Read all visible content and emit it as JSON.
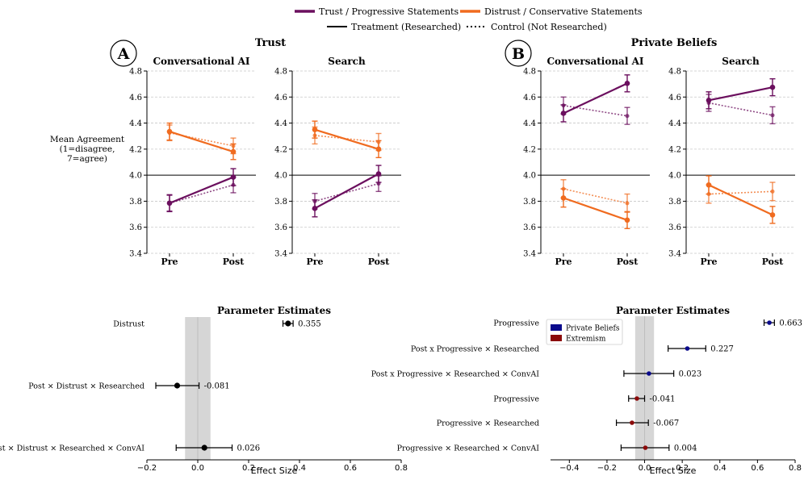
{
  "colors": {
    "purple": "#6b0f5e",
    "orange": "#f06b1f",
    "navy": "#0a0a8c",
    "darkred": "#8b0a0a",
    "black": "#000000",
    "grid": "#c8c8c8",
    "band": "#d6d6d6"
  },
  "legend": {
    "trust_label": "Trust / Progressive Statements",
    "distrust_label": "Distrust / Conservative Statements",
    "treatment_label": "Treatment (Researched)",
    "control_label": "Control (Not Researched)"
  },
  "panels": {
    "a": {
      "letter": "A",
      "title": "Trust"
    },
    "b": {
      "letter": "B",
      "title": "Private Beliefs"
    }
  },
  "ylabel": [
    "Mean Agreement",
    "(1=disagree,",
    "7=agree)"
  ],
  "chart_data": [
    {
      "type": "line",
      "panel": "A",
      "title": "Conversational AI",
      "x": [
        "Pre",
        "Post"
      ],
      "ylim": [
        3.4,
        4.8
      ],
      "yticks": [
        "3.4",
        "3.6",
        "3.8",
        "4.0",
        "4.2",
        "4.4",
        "4.6",
        "4.8"
      ],
      "refline": 4.0,
      "series": [
        {
          "name": "Distrust treatment",
          "color": "orange",
          "style": "solid",
          "values": [
            4.335,
            4.18
          ],
          "err": [
            0.065,
            0.06
          ]
        },
        {
          "name": "Distrust control",
          "color": "orange",
          "style": "dotted",
          "values": [
            4.325,
            4.225
          ],
          "err": [
            0.06,
            0.06
          ]
        },
        {
          "name": "Trust treatment",
          "color": "purple",
          "style": "solid",
          "values": [
            3.785,
            3.985
          ],
          "err": [
            0.065,
            0.065
          ]
        },
        {
          "name": "Trust control",
          "color": "purple",
          "style": "dotted",
          "values": [
            3.785,
            3.925
          ],
          "err": [
            0.06,
            0.06
          ]
        }
      ]
    },
    {
      "type": "line",
      "panel": "A",
      "title": "Search",
      "x": [
        "Pre",
        "Post"
      ],
      "ylim": [
        3.4,
        4.8
      ],
      "yticks": [
        "3.4",
        "3.6",
        "3.8",
        "4.0",
        "4.2",
        "4.4",
        "4.6",
        "4.8"
      ],
      "refline": 4.0,
      "series": [
        {
          "name": "Distrust treatment",
          "color": "orange",
          "style": "solid",
          "values": [
            4.35,
            4.2
          ],
          "err": [
            0.065,
            0.065
          ]
        },
        {
          "name": "Distrust control",
          "color": "orange",
          "style": "dotted",
          "values": [
            4.305,
            4.255
          ],
          "err": [
            0.065,
            0.065
          ]
        },
        {
          "name": "Trust treatment",
          "color": "purple",
          "style": "solid",
          "values": [
            3.745,
            4.01
          ],
          "err": [
            0.065,
            0.065
          ]
        },
        {
          "name": "Trust control",
          "color": "purple",
          "style": "dotted",
          "values": [
            3.8,
            3.935
          ],
          "err": [
            0.06,
            0.06
          ]
        }
      ]
    },
    {
      "type": "line",
      "panel": "B",
      "title": "Conversational AI",
      "x": [
        "Pre",
        "Post"
      ],
      "ylim": [
        3.4,
        4.8
      ],
      "yticks": [
        "3.4",
        "3.6",
        "3.8",
        "4.0",
        "4.2",
        "4.4",
        "4.6",
        "4.8"
      ],
      "refline": 4.0,
      "series": [
        {
          "name": "Progressive treatment",
          "color": "purple",
          "style": "solid",
          "values": [
            4.475,
            4.705
          ],
          "err": [
            0.065,
            0.065
          ]
        },
        {
          "name": "Progressive control",
          "color": "purple",
          "style": "dotted",
          "values": [
            4.535,
            4.455
          ],
          "err": [
            0.065,
            0.065
          ]
        },
        {
          "name": "Conservative treatment",
          "color": "orange",
          "style": "solid",
          "values": [
            3.825,
            3.655
          ],
          "err": [
            0.07,
            0.065
          ]
        },
        {
          "name": "Conservative control",
          "color": "orange",
          "style": "dotted",
          "values": [
            3.895,
            3.785
          ],
          "err": [
            0.07,
            0.07
          ]
        }
      ]
    },
    {
      "type": "line",
      "panel": "B",
      "title": "Search",
      "x": [
        "Pre",
        "Post"
      ],
      "ylim": [
        3.4,
        4.8
      ],
      "yticks": [
        "3.4",
        "3.6",
        "3.8",
        "4.0",
        "4.2",
        "4.4",
        "4.6",
        "4.8"
      ],
      "refline": 4.0,
      "series": [
        {
          "name": "Progressive treatment",
          "color": "purple",
          "style": "solid",
          "values": [
            4.575,
            4.675
          ],
          "err": [
            0.065,
            0.065
          ]
        },
        {
          "name": "Progressive control",
          "color": "purple",
          "style": "dotted",
          "values": [
            4.555,
            4.46
          ],
          "err": [
            0.065,
            0.065
          ]
        },
        {
          "name": "Conservative treatment",
          "color": "orange",
          "style": "solid",
          "values": [
            3.925,
            3.695
          ],
          "err": [
            0.07,
            0.065
          ]
        },
        {
          "name": "Conservative control",
          "color": "orange",
          "style": "dotted",
          "values": [
            3.855,
            3.875
          ],
          "err": [
            0.07,
            0.07
          ]
        }
      ]
    },
    {
      "type": "forest",
      "panel": "A",
      "title": "Parameter Estimates",
      "xlabel": "Effect Size",
      "xlim": [
        -0.2,
        0.8
      ],
      "xticks": [
        "−0.2",
        "0.0",
        "0.2",
        "0.4",
        "0.6",
        "0.8"
      ],
      "tick_values": [
        -0.2,
        0.0,
        0.2,
        0.4,
        0.6,
        0.8
      ],
      "band": [
        -0.05,
        0.05
      ],
      "rows": [
        {
          "label": "Distrust",
          "estimate": 0.355,
          "lo": 0.335,
          "hi": 0.375,
          "color": "black",
          "value_label": "0.355"
        },
        {
          "label": "Post × Distrust × Researched",
          "estimate": -0.081,
          "lo": -0.165,
          "hi": 0.005,
          "color": "black",
          "value_label": "-0.081"
        },
        {
          "label": "Post × Distrust × Researched × ConvAI",
          "estimate": 0.026,
          "lo": -0.085,
          "hi": 0.135,
          "color": "black",
          "value_label": "0.026"
        }
      ]
    },
    {
      "type": "forest",
      "panel": "B",
      "title": "Parameter Estimates",
      "xlabel": "Effect Size",
      "xlim": [
        -0.5,
        0.8
      ],
      "xticks": [
        "−0.4",
        "−0.2",
        "0.0",
        "0.2",
        "0.4",
        "0.6",
        "0.8"
      ],
      "tick_values": [
        -0.4,
        -0.2,
        0.0,
        0.2,
        0.4,
        0.6,
        0.8
      ],
      "band": [
        -0.05,
        0.05
      ],
      "legend": [
        {
          "label": "Private Beliefs",
          "color": "navy"
        },
        {
          "label": "Extremism",
          "color": "darkred"
        }
      ],
      "rows": [
        {
          "label": "Progressive",
          "estimate": 0.663,
          "lo": 0.635,
          "hi": 0.69,
          "color": "navy",
          "value_label": "0.663"
        },
        {
          "label": "Post x  Progressive × Researched",
          "estimate": 0.227,
          "lo": 0.125,
          "hi": 0.325,
          "color": "navy",
          "value_label": "0.227"
        },
        {
          "label": "Post x Progressive × Researched × ConvAI",
          "estimate": 0.023,
          "lo": -0.11,
          "hi": 0.155,
          "color": "navy",
          "value_label": "0.023"
        },
        {
          "label": "Progressive",
          "estimate": -0.041,
          "lo": -0.085,
          "hi": 0.0,
          "color": "darkred",
          "value_label": "-0.041"
        },
        {
          "label": "Progressive × Researched",
          "estimate": -0.067,
          "lo": -0.15,
          "hi": 0.02,
          "color": "darkred",
          "value_label": "-0.067"
        },
        {
          "label": "Progressive × Researched × ConvAI",
          "estimate": 0.004,
          "lo": -0.125,
          "hi": 0.13,
          "color": "darkred",
          "value_label": "0.004"
        }
      ]
    }
  ]
}
